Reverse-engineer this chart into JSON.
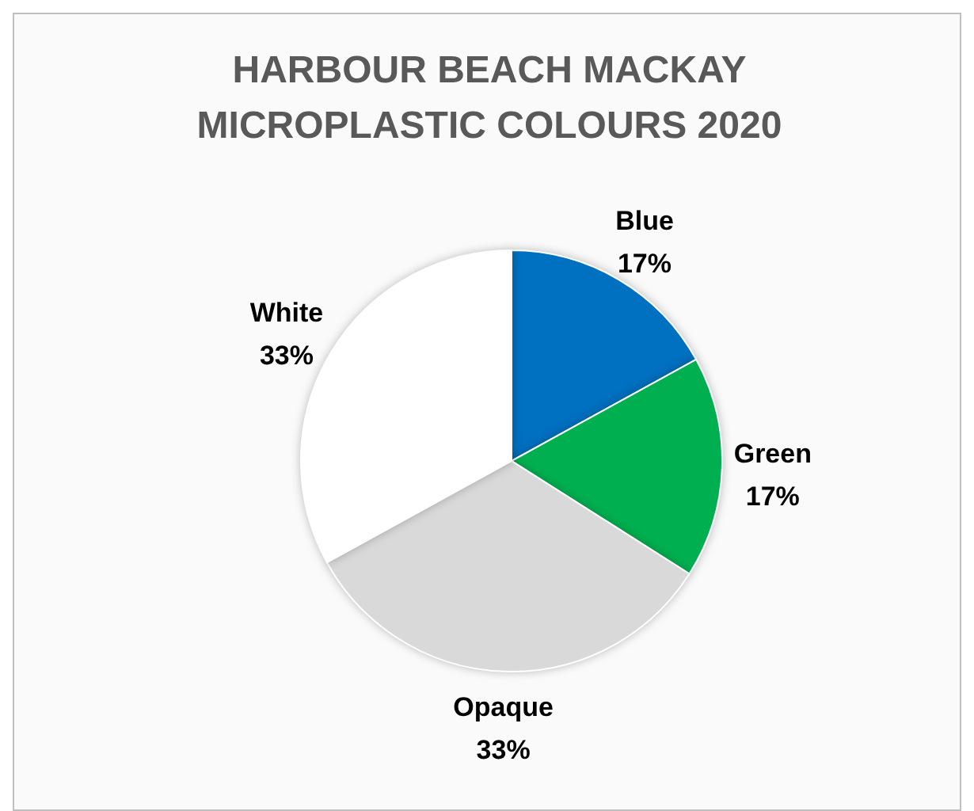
{
  "chart_data": {
    "type": "pie",
    "title": "HARBOUR BEACH MACKAY MICROPLASTIC COLOURS 2020",
    "categories": [
      "Blue",
      "Green",
      "Opaque",
      "White"
    ],
    "values": [
      17,
      17,
      33,
      33
    ],
    "colors": [
      "#0070c0",
      "#00b050",
      "#d9d9d9",
      "#ffffff"
    ],
    "value_labels": [
      "17%",
      "17%",
      "33%",
      "33%"
    ],
    "legend": false
  }
}
